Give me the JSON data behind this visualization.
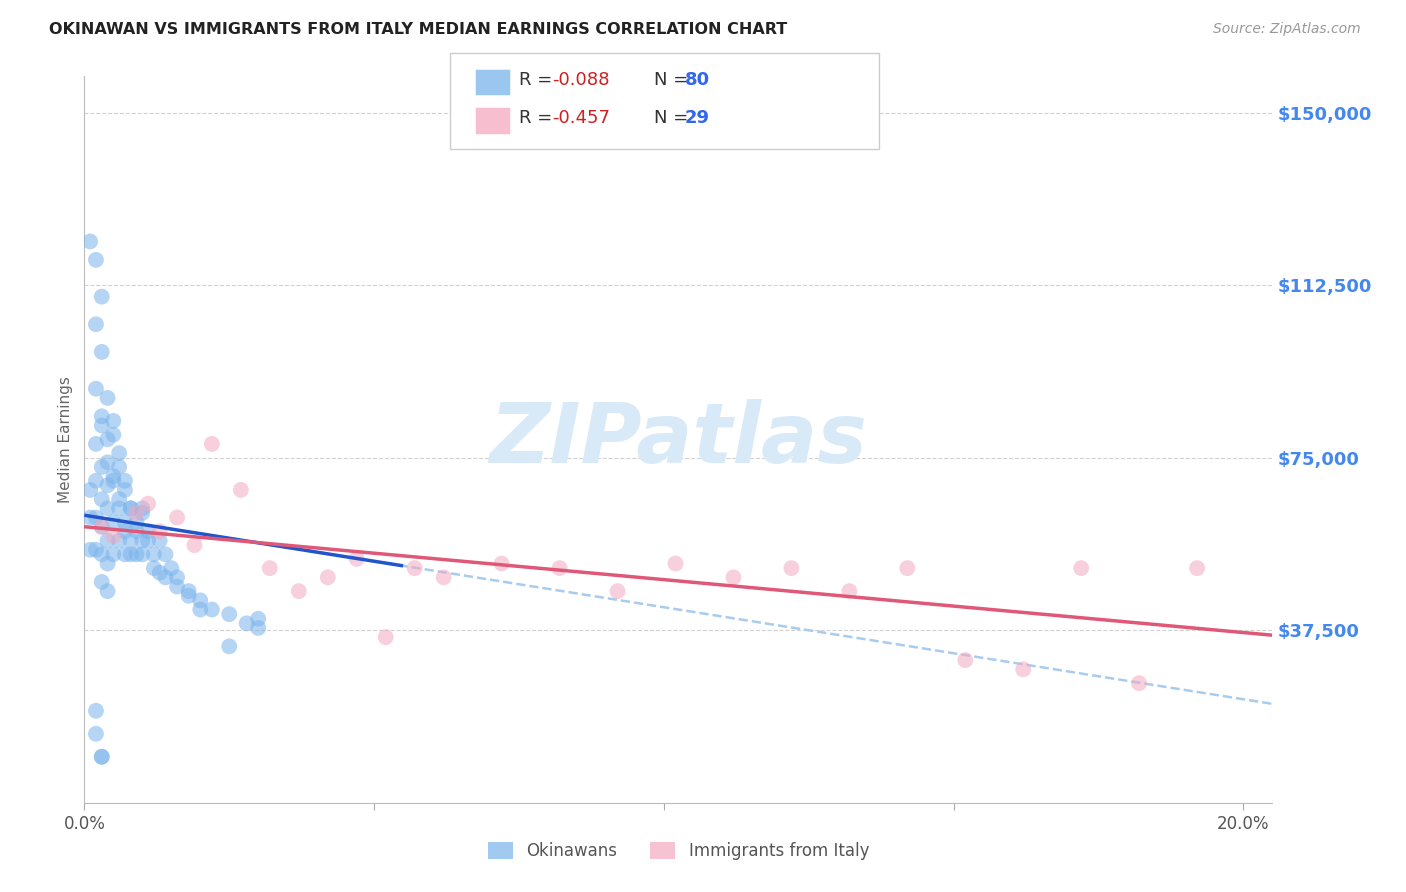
{
  "title": "OKINAWAN VS IMMIGRANTS FROM ITALY MEDIAN EARNINGS CORRELATION CHART",
  "source": "Source: ZipAtlas.com",
  "ylabel": "Median Earnings",
  "xlim": [
    0.0,
    0.205
  ],
  "ylim": [
    0,
    158000
  ],
  "ytick_positions": [
    37500,
    75000,
    112500,
    150000
  ],
  "ytick_labels": [
    "$37,500",
    "$75,000",
    "$112,500",
    "$150,000"
  ],
  "xtick_positions": [
    0.0,
    0.05,
    0.1,
    0.15,
    0.2
  ],
  "xtick_labels": [
    "0.0%",
    "",
    "",
    "",
    "20.0%"
  ],
  "blue_scatter_color": "#7ab4ec",
  "pink_scatter_color": "#f4a8c0",
  "blue_line_color": "#2255cc",
  "pink_line_color": "#e05878",
  "blue_dash_color": "#a8ccee",
  "yaxis_label_color": "#4488ee",
  "title_color": "#222222",
  "source_color": "#999999",
  "watermark_color": "#d8eaf8",
  "legend_border_color": "#cccccc",
  "blue_intercept": 62500,
  "blue_slope": -200000,
  "pink_intercept": 60000,
  "pink_slope": -115000,
  "blue_line_end_x": 0.055,
  "blue_x": [
    0.001,
    0.001,
    0.001,
    0.002,
    0.002,
    0.002,
    0.002,
    0.002,
    0.003,
    0.003,
    0.003,
    0.003,
    0.003,
    0.003,
    0.003,
    0.004,
    0.004,
    0.004,
    0.004,
    0.004,
    0.004,
    0.005,
    0.005,
    0.005,
    0.005,
    0.006,
    0.006,
    0.006,
    0.007,
    0.007,
    0.007,
    0.008,
    0.008,
    0.009,
    0.009,
    0.01,
    0.01,
    0.011,
    0.012,
    0.013,
    0.013,
    0.014,
    0.015,
    0.016,
    0.018,
    0.02,
    0.022,
    0.025,
    0.028,
    0.03,
    0.001,
    0.002,
    0.002,
    0.003,
    0.003,
    0.004,
    0.004,
    0.005,
    0.005,
    0.006,
    0.006,
    0.007,
    0.007,
    0.008,
    0.008,
    0.009,
    0.01,
    0.01,
    0.011,
    0.012,
    0.014,
    0.016,
    0.018,
    0.02,
    0.002,
    0.03,
    0.003,
    0.025,
    0.002,
    0.003
  ],
  "blue_y": [
    68000,
    62000,
    55000,
    90000,
    78000,
    70000,
    62000,
    55000,
    110000,
    82000,
    73000,
    66000,
    60000,
    54000,
    48000,
    88000,
    74000,
    64000,
    57000,
    52000,
    46000,
    83000,
    70000,
    61000,
    54000,
    76000,
    66000,
    57000,
    70000,
    61000,
    54000,
    64000,
    57000,
    61000,
    54000,
    64000,
    57000,
    59000,
    54000,
    57000,
    50000,
    54000,
    51000,
    49000,
    46000,
    44000,
    42000,
    41000,
    39000,
    40000,
    122000,
    118000,
    104000,
    98000,
    84000,
    79000,
    69000,
    80000,
    71000,
    73000,
    64000,
    68000,
    59000,
    64000,
    54000,
    59000,
    63000,
    54000,
    57000,
    51000,
    49000,
    47000,
    45000,
    42000,
    20000,
    38000,
    10000,
    34000,
    15000,
    10000
  ],
  "pink_x": [
    0.003,
    0.005,
    0.009,
    0.011,
    0.013,
    0.016,
    0.019,
    0.022,
    0.027,
    0.032,
    0.037,
    0.042,
    0.047,
    0.052,
    0.057,
    0.062,
    0.072,
    0.082,
    0.092,
    0.102,
    0.112,
    0.122,
    0.132,
    0.142,
    0.152,
    0.162,
    0.172,
    0.182,
    0.192
  ],
  "pink_y": [
    60000,
    58000,
    63000,
    65000,
    59000,
    62000,
    56000,
    78000,
    68000,
    51000,
    46000,
    49000,
    53000,
    36000,
    51000,
    49000,
    52000,
    51000,
    46000,
    52000,
    49000,
    51000,
    46000,
    51000,
    31000,
    29000,
    51000,
    26000,
    51000
  ]
}
